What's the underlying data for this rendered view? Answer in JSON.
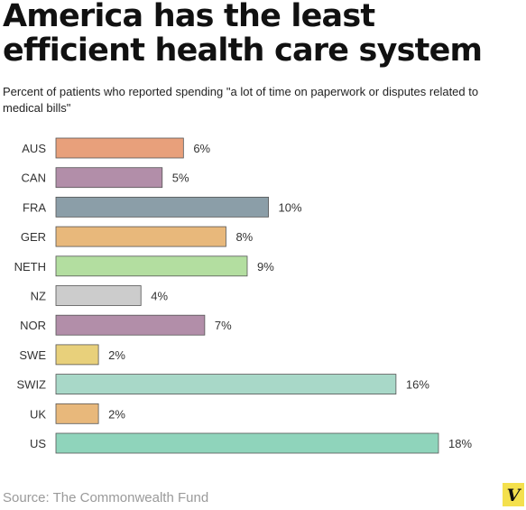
{
  "title": "America has the least efficient health care system",
  "subtitle": "Percent of patients who reported spending \"a lot of time on paperwork or disputes related to medical bills\"",
  "source": "Source: The Commonwealth Fund",
  "logo_text": "V",
  "chart_data": {
    "type": "bar",
    "orientation": "horizontal",
    "categories": [
      "AUS",
      "CAN",
      "FRA",
      "GER",
      "NETH",
      "NZ",
      "NOR",
      "SWE",
      "SWIZ",
      "UK",
      "US"
    ],
    "values": [
      6,
      5,
      10,
      8,
      9,
      4,
      7,
      2,
      16,
      2,
      18
    ],
    "value_labels": [
      "6%",
      "5%",
      "10%",
      "8%",
      "9%",
      "4%",
      "7%",
      "2%",
      "16%",
      "2%",
      "18%"
    ],
    "colors": [
      "#e8a07b",
      "#b28ea9",
      "#8b9ea8",
      "#e8b87b",
      "#b3dea0",
      "#cccccc",
      "#b28ea9",
      "#e8d07b",
      "#a8d8c8",
      "#e8b87b",
      "#8fd4bb"
    ],
    "xlim": [
      0,
      18
    ],
    "grid": false,
    "legend": "none"
  }
}
